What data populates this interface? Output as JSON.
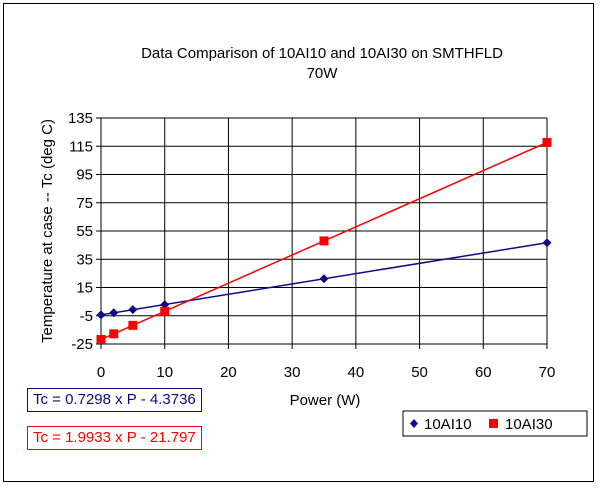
{
  "chart_data": {
    "type": "line",
    "title_lines": [
      "Data Comparison of 10AI10 and 10AI30 on SMTHFLD",
      "70W"
    ],
    "xlabel": "Power (W)",
    "ylabel": "Temperature at case -- Tc (deg C)",
    "xlim": [
      0,
      70
    ],
    "ylim": [
      -25,
      135
    ],
    "xticks": [
      0,
      10,
      20,
      30,
      40,
      50,
      60,
      70
    ],
    "yticks": [
      -25,
      -5,
      15,
      35,
      55,
      75,
      95,
      115,
      135
    ],
    "grid": true,
    "legend_position": "bottom-right",
    "series": [
      {
        "name": "10AI10",
        "color": "#0b0b8a",
        "marker": "diamond",
        "points": [
          [
            0,
            -4.4
          ],
          [
            2,
            -2.9
          ],
          [
            5,
            -0.7
          ],
          [
            10,
            2.9
          ],
          [
            35,
            21.2
          ],
          [
            70,
            46.7
          ]
        ],
        "trendline": [
          [
            0,
            -4.3736
          ],
          [
            70,
            46.7124
          ]
        ],
        "equation": "Tc = 0.7298 x P - 4.3736"
      },
      {
        "name": "10AI30",
        "color": "#ff0000",
        "marker": "square",
        "points": [
          [
            0,
            -21.8
          ],
          [
            2,
            -17.8
          ],
          [
            5,
            -11.8
          ],
          [
            10,
            -1.9
          ],
          [
            35,
            48.0
          ],
          [
            70,
            117.7
          ]
        ],
        "trendline": [
          [
            0,
            -21.797
          ],
          [
            70,
            117.734
          ]
        ],
        "equation": "Tc = 1.9933 x P - 21.797"
      }
    ]
  }
}
